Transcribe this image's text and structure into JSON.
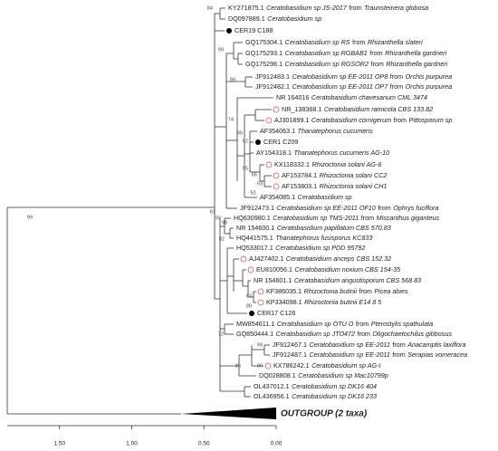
{
  "tree": {
    "leaves": [
      {
        "label": [
          "KY271875.1",
          {
            "i": "Ceratobasidium sp JS-2017"
          },
          "from",
          {
            "i": "Traunsteinera globosa"
          }
        ]
      },
      {
        "label": [
          "DQ097889.1",
          {
            "i": "Ceratobasidium sp"
          }
        ]
      },
      {
        "label": [
          "CER19 C188"
        ],
        "marker": "dot"
      },
      {
        "label": [
          "GQ175304.1",
          {
            "i": "Ceratobasidium sp RS"
          },
          "from",
          {
            "i": "Rhizanthella slateri"
          }
        ]
      },
      {
        "label": [
          "GQ175293.1",
          {
            "i": "Ceratobasidium sp RGBAB1"
          },
          "from",
          {
            "i": "Rhizanthella gardneri"
          }
        ]
      },
      {
        "label": [
          "GQ175296.1",
          {
            "i": "Ceratobasidium sp RGSOR2"
          },
          "from",
          {
            "i": "Rhizanthella gardneri"
          }
        ]
      },
      {
        "label": [
          "JF912483.1",
          {
            "i": "Ceratobasidium sp EE-2011 OP8"
          },
          "from",
          {
            "i": "Orchis purpurea"
          }
        ]
      },
      {
        "label": [
          "JF912482.1",
          {
            "i": "Ceratobasidium sp EE-2011 OP7"
          },
          "from",
          {
            "i": "Orchis purpurea"
          }
        ]
      },
      {
        "label": [
          "NR 164016",
          {
            "i": "Ceratobasidium chavesanum CML 3474"
          }
        ]
      },
      {
        "label": [
          "NR_138368.1",
          {
            "i": "Ceratobasidium ramicola CBS 133.82"
          }
        ],
        "marker": "circle"
      },
      {
        "label": [
          "AJ301899.1",
          {
            "i": "Ceratobasidium cornigerum"
          },
          "from",
          {
            "i": "Pittosporum sp"
          }
        ],
        "marker": "circle"
      },
      {
        "label": [
          "AF354063.1",
          {
            "i": "Thanatephorus cucumeris"
          }
        ]
      },
      {
        "label": [
          "CER1 C209"
        ],
        "marker": "dot"
      },
      {
        "label": [
          "AY154318.1",
          {
            "i": "Thanatephorus cucumeris AG-10"
          }
        ]
      },
      {
        "label": [
          "KX118332.1",
          {
            "i": "Rhizoctonia solani AG-6"
          }
        ],
        "marker": "circle"
      },
      {
        "label": [
          "AF153784.1",
          {
            "i": "Rhizoctonia solani CC2"
          }
        ],
        "marker": "circle"
      },
      {
        "label": [
          "AF153803.1",
          {
            "i": "Rhizoctonia solani CH1"
          }
        ],
        "marker": "circle"
      },
      {
        "label": [
          "AF354085.1",
          {
            "i": "Ceratobasidium sp"
          }
        ]
      },
      {
        "label": [
          "JF912473.1",
          {
            "i": "Ceratobasidium sp EE-2011 OF10"
          },
          "from",
          {
            "i": "Ophrys fuciflora"
          }
        ]
      },
      {
        "label": [
          "HQ630980.1",
          {
            "i": "Ceratobasidium sp TMS-2011"
          },
          "from",
          {
            "i": "Miscanthus giganteus"
          }
        ]
      },
      {
        "label": [
          "NR 154600.1",
          {
            "i": "Ceratobasidium papillatum CBS 570.83"
          }
        ]
      },
      {
        "label": [
          "HQ441575.1",
          {
            "i": "Thanatephorus fusisporus KC833"
          }
        ]
      },
      {
        "label": [
          "HQ533017.1",
          {
            "i": "Ceratobasidium sp PDD 95792"
          }
        ]
      },
      {
        "label": [
          "AJ427402.1",
          {
            "i": "Ceratobasidium anceps CBS 152.32"
          }
        ],
        "marker": "circle"
      },
      {
        "label": [
          "EU810056.1",
          {
            "i": "Ceratobasidium noxium CBS 154-35"
          }
        ],
        "marker": "circle"
      },
      {
        "label": [
          "NR 154601.1",
          {
            "i": "Ceratobasidium angustisporum CBS 568.83"
          }
        ]
      },
      {
        "label": [
          "KF386035.1",
          {
            "i": "Rhizoctonia butinii"
          },
          "from",
          {
            "i": "Picea abies"
          }
        ],
        "marker": "circle"
      },
      {
        "label": [
          "KP334098.1",
          {
            "i": "Rhizoctonia butinii E14 8 5"
          }
        ],
        "marker": "circle"
      },
      {
        "label": [
          "CER17 C126"
        ],
        "marker": "dot"
      },
      {
        "label": [
          "MW854611.1",
          {
            "i": "Ceratobasidium sp OTU O"
          },
          "from",
          {
            "i": "Pterostylis spathulata"
          }
        ]
      },
      {
        "label": [
          "GQ850444.1",
          {
            "i": "Ceratobasidium sp JTO472"
          },
          "from",
          {
            "i": "Oligochaetochilus gibbosus"
          }
        ]
      },
      {
        "label": [
          "JF912467.1",
          {
            "i": "Ceratobasidium sp EE-2011"
          },
          "from",
          {
            "i": "Anacamptis laxiflora"
          }
        ]
      },
      {
        "label": [
          "JF912487.1",
          {
            "i": "Ceratobasidium sp EE-2011"
          },
          "from",
          {
            "i": "Serapias vomeracea"
          }
        ]
      },
      {
        "label": [
          "KX786242.1",
          {
            "i": "Ceratobasidium sp AG-I"
          }
        ],
        "marker": "circle"
      },
      {
        "label": [
          "DQ028808.1",
          {
            "i": "Ceratobasidium sp Mac10799p"
          }
        ]
      },
      {
        "label": [
          "OL437012.1",
          {
            "i": "Ceratobasidium sp DK16 404"
          }
        ]
      },
      {
        "label": [
          "OL436956.1",
          {
            "i": "Ceratobasidium sp DK16 233"
          }
        ]
      }
    ],
    "supports": [
      99,
      84,
      99,
      99,
      74,
      95,
      52,
      95,
      66,
      93,
      51,
      81,
      99,
      98,
      82,
      93,
      99,
      99,
      90,
      86,
      72
    ],
    "outgroup": "OUTGROUP (2 taxa)",
    "scale": {
      "ticks": [
        {
          "value": 1.5,
          "label": "1.50"
        },
        {
          "value": 1,
          "label": "1.00"
        },
        {
          "value": 0.5,
          "label": "0.50"
        },
        {
          "value": 0,
          "label": "0.00"
        }
      ]
    }
  }
}
